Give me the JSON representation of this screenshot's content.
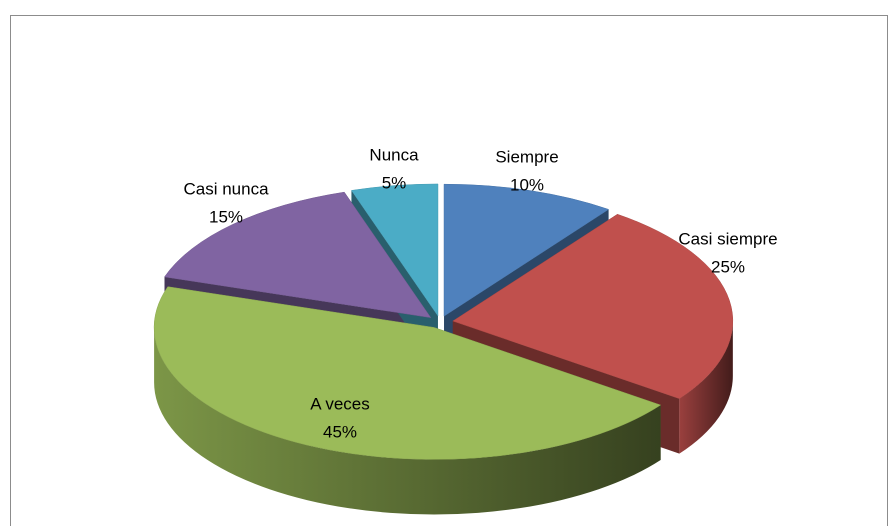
{
  "chart_data": {
    "type": "pie",
    "categories": [
      "Siempre",
      "Casi siempre",
      "A veces",
      "Casi nunca",
      "Nunca"
    ],
    "values": [
      10,
      25,
      45,
      15,
      5
    ],
    "value_labels": [
      "10%",
      "25%",
      "45%",
      "15%",
      "5%"
    ],
    "colors": [
      "#4f81bd",
      "#c0504d",
      "#9bbb59",
      "#8064a2",
      "#4bacc6"
    ]
  }
}
